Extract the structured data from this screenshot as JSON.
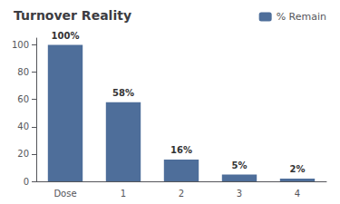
{
  "chart_data": {
    "type": "bar",
    "title": "Turnover Reality",
    "categories": [
      "Dose",
      "1",
      "2",
      "3",
      "4"
    ],
    "series": [
      {
        "name": "% Remain",
        "color": "#4E6E9A",
        "values": [
          100,
          58,
          16,
          5,
          2
        ],
        "value_labels": [
          "100%",
          "58%",
          "16%",
          "5%",
          "2%"
        ]
      }
    ],
    "ylim": [
      0,
      105
    ],
    "yticks": [
      0,
      20,
      40,
      60,
      80,
      100
    ],
    "grid": false,
    "legend": "upper right",
    "data_labels": true
  }
}
